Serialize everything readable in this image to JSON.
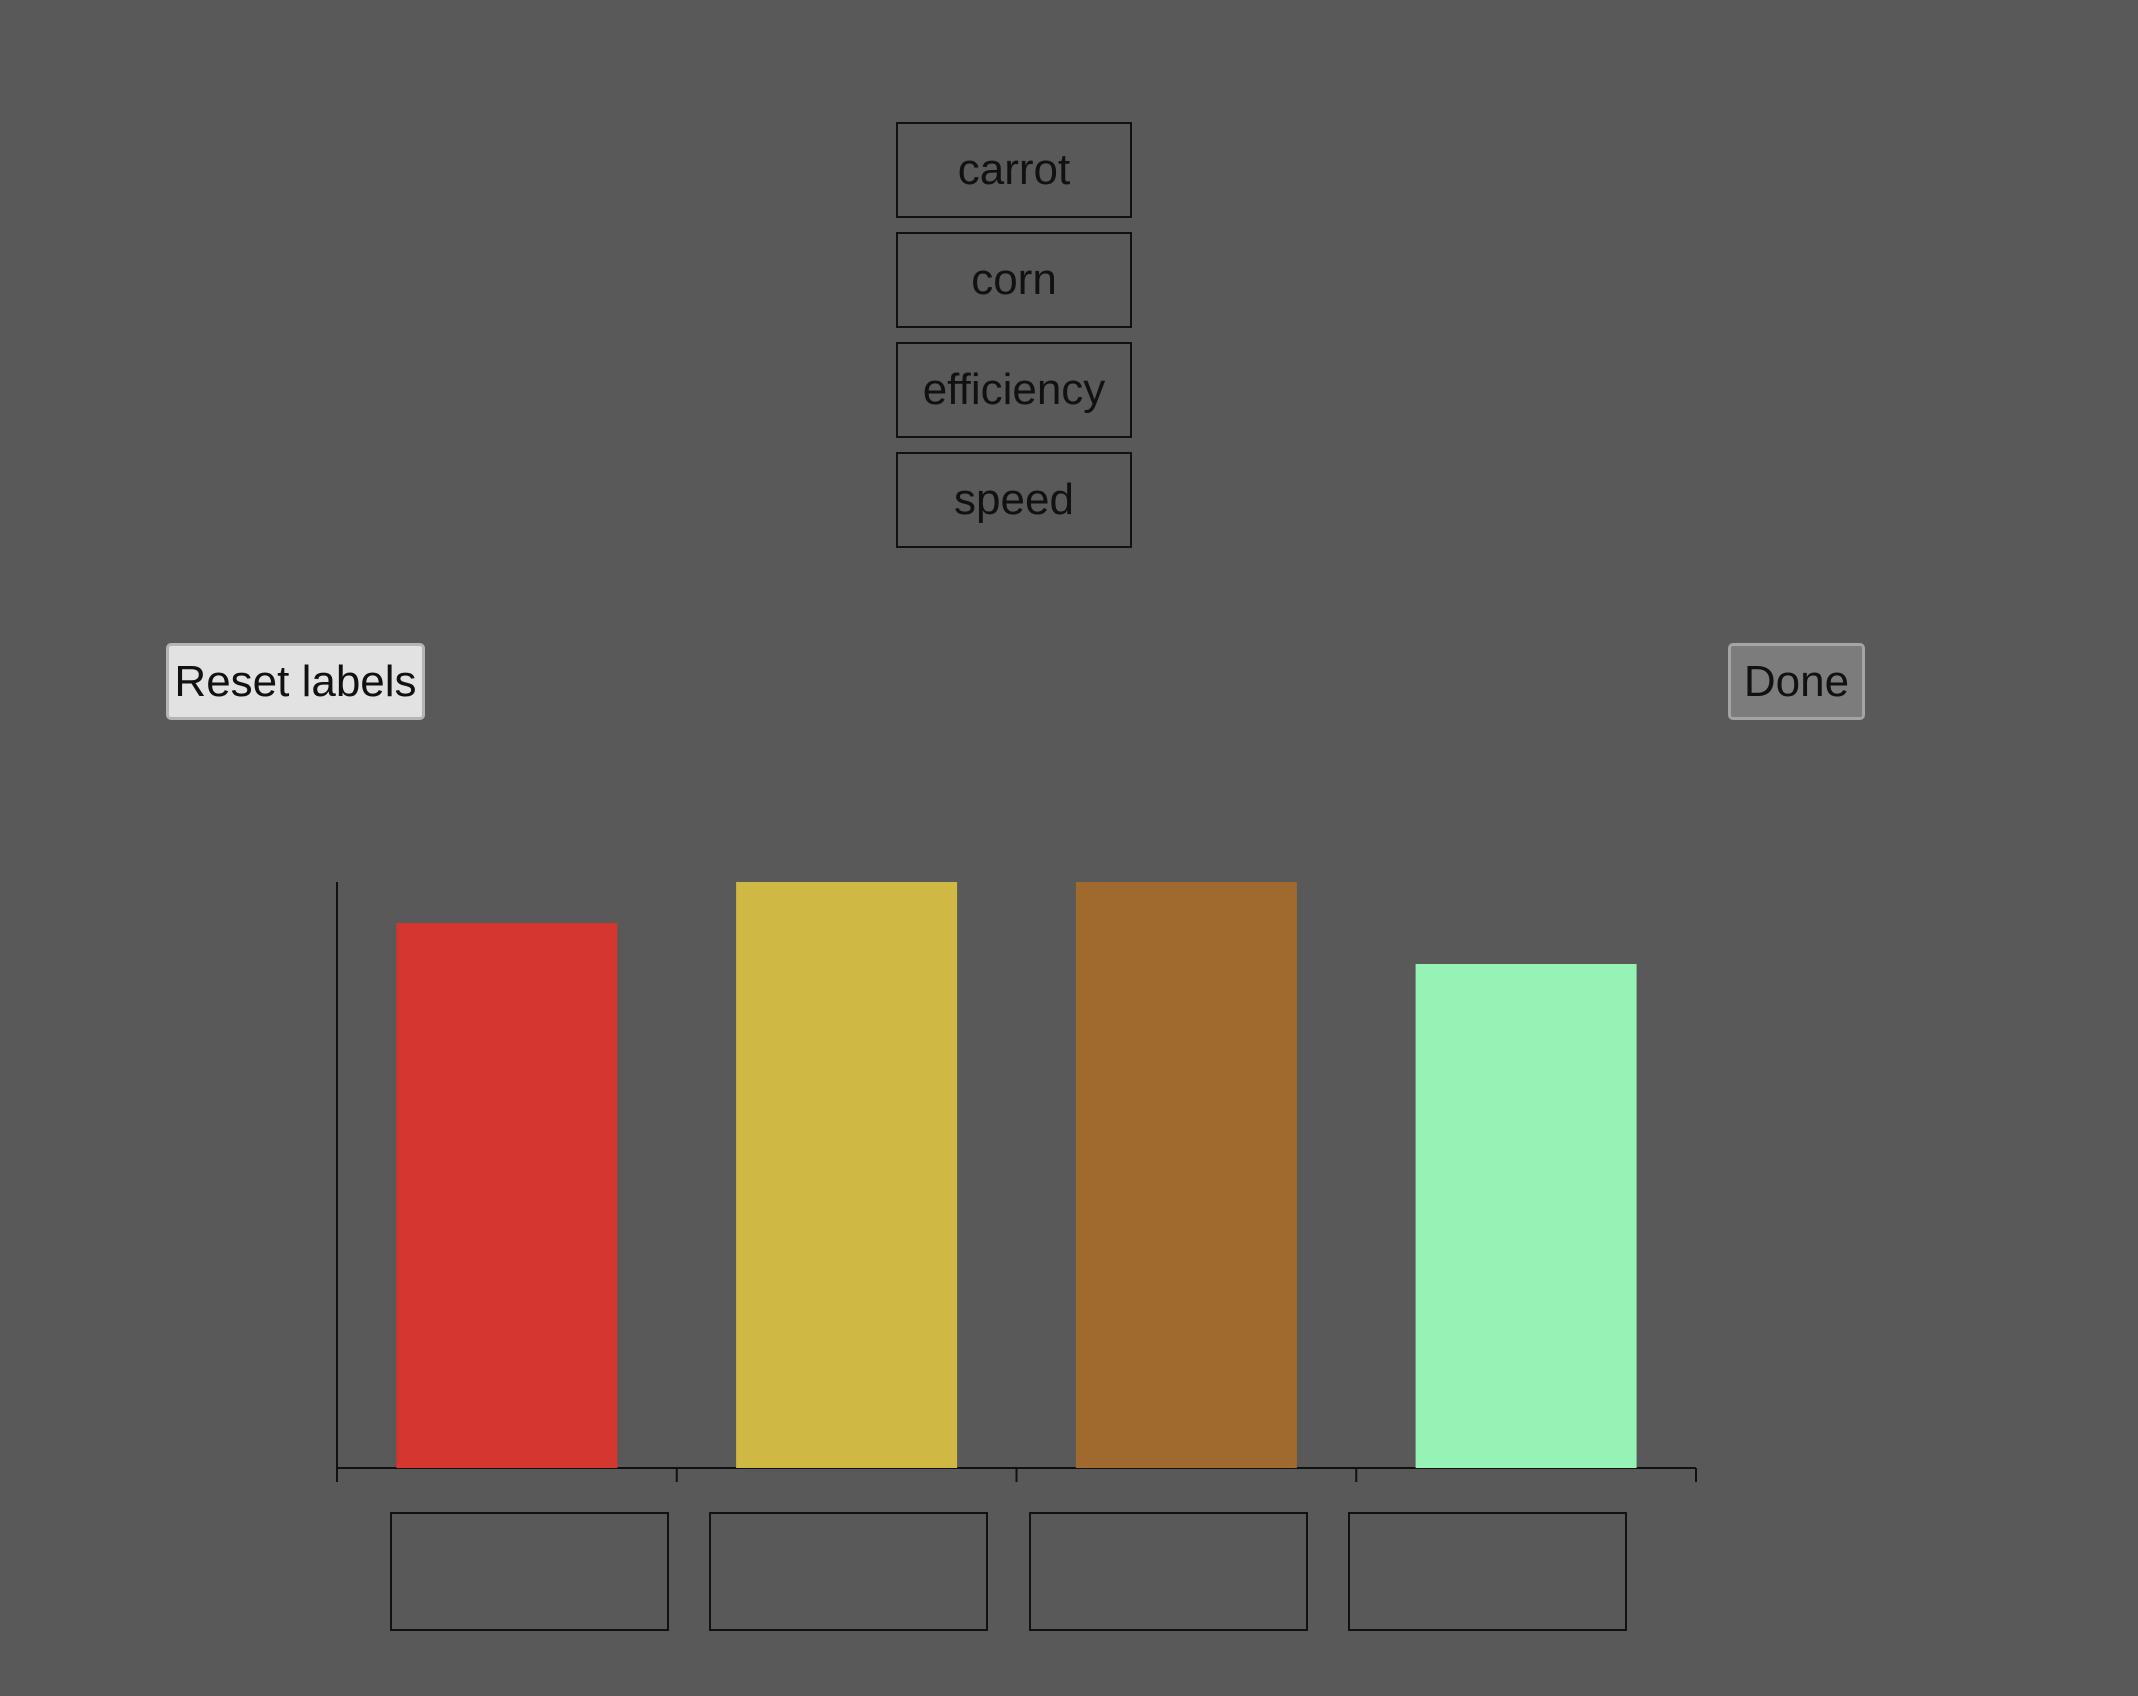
{
  "word_bank": [
    "carrot",
    "corn",
    "efficiency",
    "speed"
  ],
  "buttons": {
    "reset_label": "Reset labels",
    "done_label": "Done"
  },
  "chart_data": {
    "type": "bar",
    "categories": [
      "",
      "",
      "",
      ""
    ],
    "values": [
      93,
      100,
      100,
      86
    ],
    "colors": [
      "#d63630",
      "#cfb843",
      "#a0692d",
      "#97f2b6"
    ],
    "ylim": [
      0,
      100
    ],
    "xlabel": "",
    "ylabel": "",
    "title": "",
    "grid": false
  },
  "label_slots": [
    "",
    "",
    "",
    ""
  ]
}
